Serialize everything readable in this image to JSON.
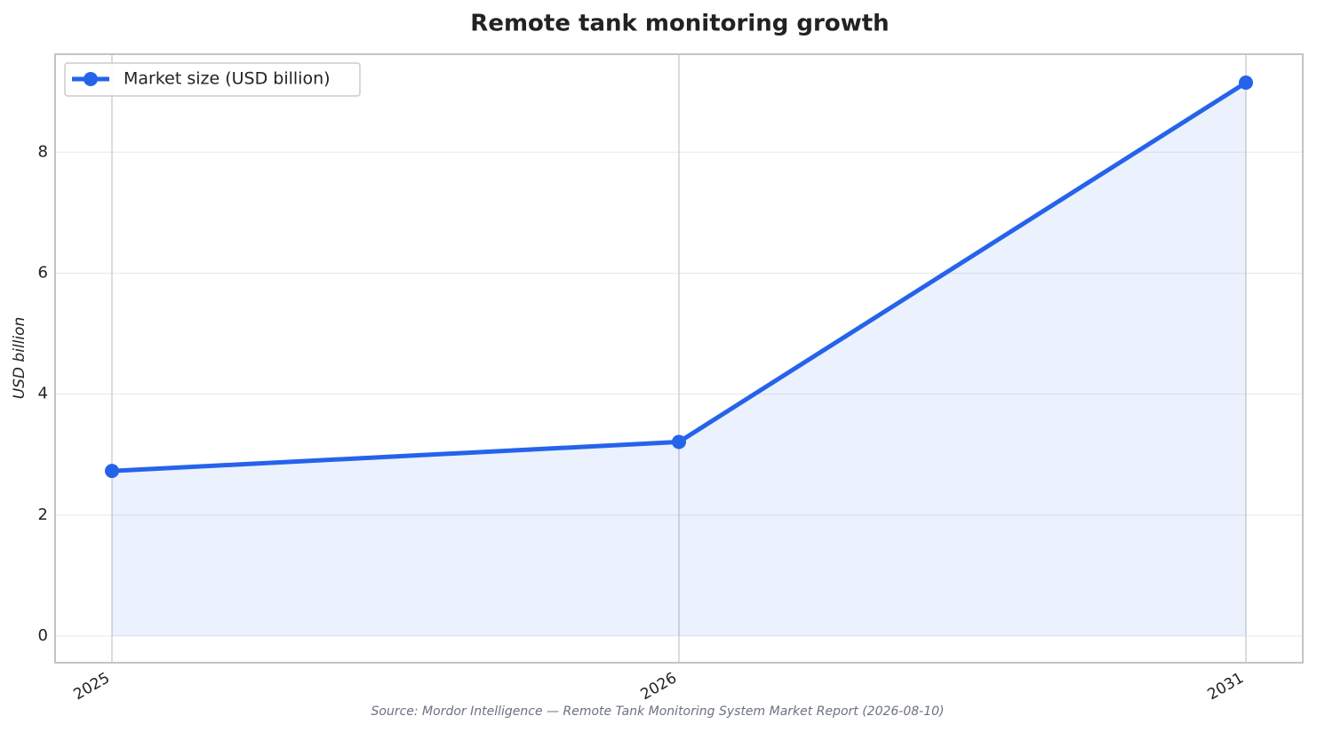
{
  "chart_data": {
    "type": "line",
    "title": "Remote tank monitoring growth",
    "y_label": "USD billion",
    "source": "Source: Mordor Intelligence — Remote Tank Monitoring System Market Report (2026-08-10)",
    "categories": [
      "2025",
      "2026",
      "2031"
    ],
    "series": [
      {
        "name": "Market size (USD billion)",
        "color": "#2563eb",
        "values": [
          2.73,
          3.21,
          9.15
        ]
      }
    ],
    "area": true,
    "ylim": [
      -0.44,
      9.62
    ],
    "yticks": [
      0,
      2,
      4,
      6,
      8
    ],
    "grid": true,
    "legend": "upper-left"
  }
}
